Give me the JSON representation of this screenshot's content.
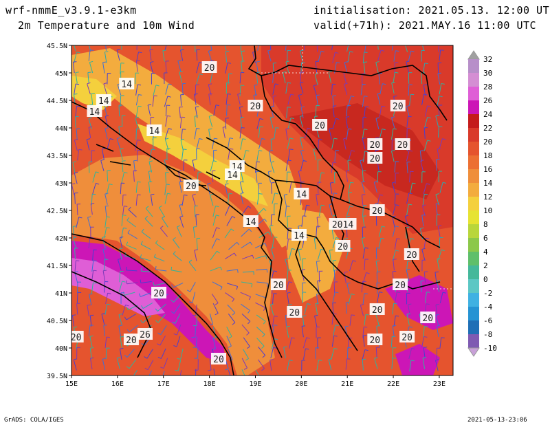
{
  "header": {
    "model": "wrf-nmmE_v3.9.1-e3km",
    "variable": "2m Temperature and 10m Wind",
    "initialisation": "initialisation: 2021.05.13. 12:00 UTC",
    "valid": "valid(+71h): 2021.MAY.16 11:00 UTC"
  },
  "map": {
    "lat_ticks": [
      "45.5N",
      "45N",
      "44.5N",
      "44N",
      "43.5N",
      "43N",
      "42.5N",
      "42N",
      "41.5N",
      "41N",
      "40.5N",
      "40N",
      "39.5N"
    ],
    "lon_ticks": [
      "15E",
      "16E",
      "17E",
      "18E",
      "19E",
      "20E",
      "21E",
      "22E",
      "23E"
    ],
    "contour_labels": [
      {
        "text": "20",
        "lon": 18.0,
        "lat": 45.1
      },
      {
        "text": "14",
        "lon": 16.2,
        "lat": 44.8
      },
      {
        "text": "14",
        "lon": 15.7,
        "lat": 44.5
      },
      {
        "text": "14",
        "lon": 15.5,
        "lat": 44.3
      },
      {
        "text": "20",
        "lon": 19.0,
        "lat": 44.4
      },
      {
        "text": "20",
        "lon": 20.4,
        "lat": 44.05
      },
      {
        "text": "20",
        "lon": 22.1,
        "lat": 44.4
      },
      {
        "text": "14",
        "lon": 16.8,
        "lat": 43.95
      },
      {
        "text": "20",
        "lon": 21.6,
        "lat": 43.7
      },
      {
        "text": "20",
        "lon": 22.2,
        "lat": 43.7
      },
      {
        "text": "20",
        "lon": 21.6,
        "lat": 43.45
      },
      {
        "text": "14",
        "lon": 18.6,
        "lat": 43.3
      },
      {
        "text": "14",
        "lon": 18.5,
        "lat": 43.15
      },
      {
        "text": "20",
        "lon": 17.6,
        "lat": 42.95
      },
      {
        "text": "14",
        "lon": 20.0,
        "lat": 42.8
      },
      {
        "text": "20",
        "lon": 21.65,
        "lat": 42.5
      },
      {
        "text": "14",
        "lon": 18.9,
        "lat": 42.3
      },
      {
        "text": "2014",
        "lon": 20.9,
        "lat": 42.25
      },
      {
        "text": "14",
        "lon": 19.95,
        "lat": 42.05
      },
      {
        "text": "20",
        "lon": 20.9,
        "lat": 41.85
      },
      {
        "text": "20",
        "lon": 22.4,
        "lat": 41.7
      },
      {
        "text": "20",
        "lon": 19.5,
        "lat": 41.15
      },
      {
        "text": "20",
        "lon": 22.15,
        "lat": 41.15
      },
      {
        "text": "20",
        "lon": 16.9,
        "lat": 41.0
      },
      {
        "text": "20",
        "lon": 19.85,
        "lat": 40.65
      },
      {
        "text": "20",
        "lon": 21.65,
        "lat": 40.7
      },
      {
        "text": "20",
        "lon": 22.75,
        "lat": 40.55
      },
      {
        "text": "26",
        "lon": 16.6,
        "lat": 40.25
      },
      {
        "text": "20",
        "lon": 16.3,
        "lat": 40.15
      },
      {
        "text": "20",
        "lon": 22.3,
        "lat": 40.2
      },
      {
        "text": "20",
        "lon": 21.6,
        "lat": 40.15
      },
      {
        "text": "20",
        "lon": 18.2,
        "lat": 39.8
      },
      {
        "text": "20",
        "lon": 15.1,
        "lat": 40.2
      }
    ]
  },
  "colorbar": {
    "labels": [
      "32",
      "30",
      "28",
      "26",
      "24",
      "22",
      "20",
      "18",
      "16",
      "14",
      "12",
      "10",
      "8",
      "6",
      "4",
      "2",
      "0",
      "-2",
      "-4",
      "-6",
      "-8",
      "-10"
    ],
    "colors": [
      "#b78fc9",
      "#d48ed3",
      "#df5ed6",
      "#cc16b6",
      "#c41c1c",
      "#d93a2a",
      "#e5542e",
      "#ec7033",
      "#ef8e3b",
      "#f3ac3e",
      "#f4d03d",
      "#e6e332",
      "#b9d63b",
      "#8cc84a",
      "#5fbf6a",
      "#44b89a",
      "#5cc7c4",
      "#3fb1e2",
      "#2593d3",
      "#1f6fb6",
      "#7e5ab2"
    ],
    "top_arrow_color": "#a0a0a0",
    "bottom_arrow_color": "#c8a0d8"
  },
  "footer": {
    "software": "GrADS: COLA/IGES",
    "timestamp": "2021-05-13-23:06"
  }
}
